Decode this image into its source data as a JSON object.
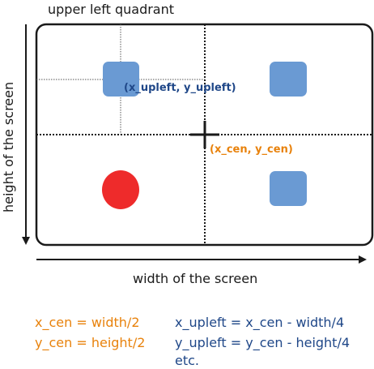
{
  "labels": {
    "quadrant_title": "upper left quadrant",
    "width_axis": "width of the screen",
    "height_axis": "height of the screen",
    "upleft_point": "(x_upleft, y_upleft)",
    "center_point": "(x_cen, y_cen)"
  },
  "equations": {
    "left": [
      "x_cen = width/2",
      "y_cen = height/2"
    ],
    "right": [
      "x_upleft = x_cen - width/4",
      "y_upleft = y_cen - height/4",
      "etc."
    ]
  },
  "colors": {
    "square": "#6a9ad3",
    "circle": "#ee2b2b",
    "orange": "#e8820c",
    "blue": "#1f4788",
    "line": "#1a1a1a"
  }
}
